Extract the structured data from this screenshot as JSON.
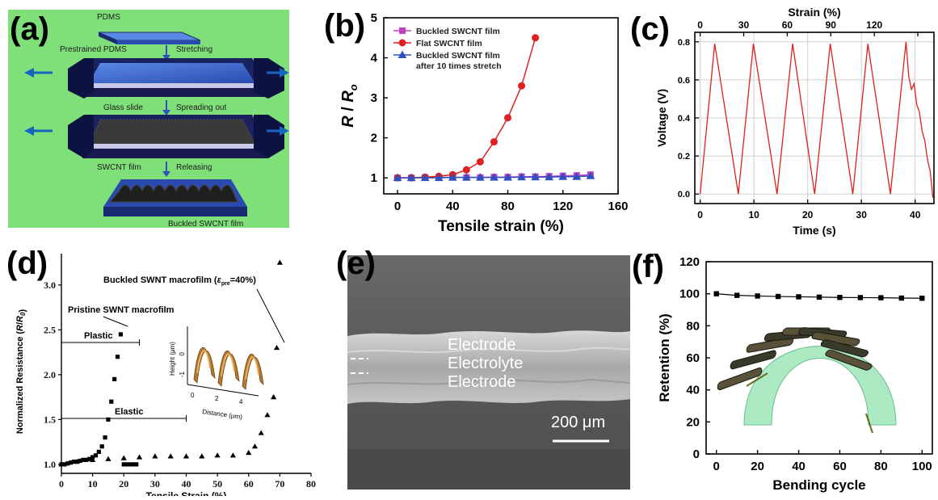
{
  "panels": {
    "a": {
      "label": "(a)",
      "texts": {
        "pdms": "PDMS",
        "prestrained": "Prestrained PDMS",
        "stretching": "Stretching",
        "glass": "Glass slide",
        "spreading": "Spreading out",
        "swcnt": "SWCNT film",
        "releasing": "Releasing",
        "buckled": "Buckled SWCNT film"
      },
      "colors": {
        "background": "#7fe07a",
        "pdms": "#4a78d8",
        "film": "#2a2a2a"
      }
    },
    "b": {
      "label": "(b)"
    },
    "c": {
      "label": "(c)"
    },
    "d": {
      "label": "(d)",
      "annotations": {
        "buckled_title_pre": "Buckled SWNT macrofilm (",
        "buckled_title_sym": "ε",
        "buckled_title_sub": "pre",
        "buckled_title_post": "=40%)",
        "pristine": "Pristine SWNT macrofilm",
        "plastic": "Plastic",
        "elastic": "Elastic"
      },
      "inset": {
        "ylabel": "Height (μm)",
        "xlabel": "Distance (μm)",
        "yticks": [
          "0",
          "-1"
        ],
        "xticks": [
          "0",
          "2",
          "4"
        ]
      }
    },
    "e": {
      "label": "(e)",
      "layers": [
        "Electrode",
        "Electrolyte",
        "Electrode"
      ],
      "scalebar": "200 μm"
    },
    "f": {
      "label": "(f)"
    }
  },
  "chart_data": [
    {
      "id": "b",
      "type": "line",
      "xlabel": "Tensile strain (%)",
      "ylabel_main": "R",
      "ylabel_sep": " / ",
      "ylabel_sub_base": "R",
      "ylabel_sub": "o",
      "xlim": [
        -10,
        160
      ],
      "ylim": [
        0.6,
        5
      ],
      "xticks": [
        0,
        40,
        80,
        120,
        160
      ],
      "yticks": [
        1,
        2,
        3,
        4,
        5
      ],
      "legend_position": "top-left",
      "series": [
        {
          "name": "Buckled SWCNT film",
          "marker": "square",
          "color": "#c040c0",
          "x": [
            0,
            10,
            20,
            30,
            40,
            50,
            60,
            70,
            80,
            90,
            100,
            110,
            120,
            130,
            140
          ],
          "y": [
            1.0,
            1.0,
            1.01,
            1.01,
            1.01,
            1.01,
            1.01,
            1.02,
            1.02,
            1.03,
            1.03,
            1.04,
            1.05,
            1.06,
            1.08
          ]
        },
        {
          "name": "Flat SWCNT film",
          "marker": "circle",
          "color": "#e02020",
          "x": [
            0,
            10,
            20,
            30,
            40,
            50,
            60,
            70,
            80,
            90,
            100
          ],
          "y": [
            1.0,
            1.0,
            1.02,
            1.04,
            1.08,
            1.2,
            1.4,
            1.9,
            2.5,
            3.3,
            4.5
          ]
        },
        {
          "name": "Buckled SWCNT film",
          "name2": "after 10 times stretch",
          "marker": "triangle",
          "color": "#3050c0",
          "x": [
            0,
            10,
            20,
            30,
            40,
            50,
            60,
            70,
            80,
            90,
            100,
            110,
            120,
            130,
            140
          ],
          "y": [
            1.0,
            1.0,
            1.0,
            1.0,
            1.01,
            1.01,
            1.01,
            1.01,
            1.01,
            1.02,
            1.02,
            1.02,
            1.03,
            1.03,
            1.05
          ]
        }
      ]
    },
    {
      "id": "c",
      "type": "line",
      "xlabel": "Time (s)",
      "ylabel": "Voltage (V)",
      "top_xlabel": "Strain (%)",
      "xlim": [
        -1,
        43.5
      ],
      "ylim": [
        -0.05,
        0.85
      ],
      "xticks": [
        0,
        10,
        20,
        30,
        40
      ],
      "yticks": [
        0.0,
        0.2,
        0.4,
        0.6,
        0.8
      ],
      "yticklabels": [
        "0.0",
        "0.2",
        "0.4",
        "0.6",
        "0.8"
      ],
      "top_xticks_time": [
        0,
        8.1,
        16.2,
        24.3,
        32.4,
        40.5
      ],
      "top_xticklabels": [
        "0",
        "30",
        "60",
        "90",
        "120"
      ],
      "grid": true,
      "series": [
        {
          "color": "#e0201a",
          "x": [
            0,
            2.7,
            7.1,
            9.9,
            14.3,
            17.2,
            21.3,
            24.2,
            28.4,
            31.2,
            35.4,
            38.3,
            38.8,
            39.3,
            39.8,
            40.3,
            40.8,
            41.3,
            41.8,
            42.3,
            42.8,
            43.3
          ],
          "y": [
            0,
            0.79,
            0,
            0.79,
            0,
            0.79,
            0,
            0.79,
            0,
            0.79,
            0,
            0.8,
            0.62,
            0.55,
            0.58,
            0.47,
            0.43,
            0.33,
            0.28,
            0.18,
            0.12,
            -0.02
          ]
        }
      ]
    },
    {
      "id": "d",
      "type": "scatter",
      "xlabel": "Tensile Strain (%)",
      "ylabel_pre": "Normalized Resistance (",
      "ylabel_main": "R",
      "ylabel_sep": "/",
      "ylabel_sub_base": "R",
      "ylabel_sub": "0",
      "ylabel_post": ")",
      "xlim": [
        0,
        80
      ],
      "ylim": [
        0.9,
        3.35
      ],
      "xticks": [
        0,
        10,
        20,
        30,
        40,
        50,
        60,
        70,
        80
      ],
      "yticks": [
        1.0,
        1.5,
        2.0,
        2.5,
        3.0
      ],
      "yticklabels": [
        "1.0",
        "1.5",
        "2.0",
        "2.5",
        "3.0"
      ],
      "series": [
        {
          "marker": "square",
          "x": [
            0,
            1,
            2,
            3,
            4,
            5,
            6,
            7,
            8,
            9,
            10,
            11,
            12,
            13,
            14,
            15,
            16,
            17,
            18,
            19,
            20,
            21,
            22,
            23,
            24
          ],
          "y": [
            1.0,
            1.0,
            1.01,
            1.02,
            1.03,
            1.03,
            1.04,
            1.05,
            1.05,
            1.06,
            1.08,
            1.1,
            1.14,
            1.2,
            1.3,
            1.5,
            1.7,
            1.95,
            2.2,
            2.45,
            1.0,
            1.0,
            1.0,
            1.0,
            1.0
          ]
        },
        {
          "marker": "triangle",
          "x": [
            0,
            5,
            10,
            15,
            20,
            25,
            30,
            35,
            40,
            45,
            50,
            55,
            60,
            62,
            64,
            66,
            68,
            69,
            70
          ],
          "y": [
            1.0,
            1.03,
            1.05,
            1.06,
            1.07,
            1.08,
            1.09,
            1.09,
            1.09,
            1.09,
            1.1,
            1.1,
            1.13,
            1.2,
            1.35,
            1.55,
            1.75,
            2.3,
            3.25
          ]
        }
      ]
    },
    {
      "id": "f",
      "type": "line",
      "xlabel": "Bending cycle",
      "ylabel": "Retention (%)",
      "xlim": [
        -5,
        105
      ],
      "ylim": [
        0,
        120
      ],
      "xticks": [
        0,
        20,
        40,
        60,
        80,
        100
      ],
      "yticks": [
        0,
        20,
        40,
        60,
        80,
        100,
        120
      ],
      "series": [
        {
          "marker": "square",
          "color": "#000000",
          "x": [
            0,
            10,
            20,
            30,
            40,
            50,
            60,
            70,
            80,
            90,
            100
          ],
          "y": [
            100,
            99,
            98.6,
            98.3,
            98.1,
            97.9,
            97.7,
            97.6,
            97.5,
            97.3,
            97.2
          ]
        }
      ]
    }
  ]
}
